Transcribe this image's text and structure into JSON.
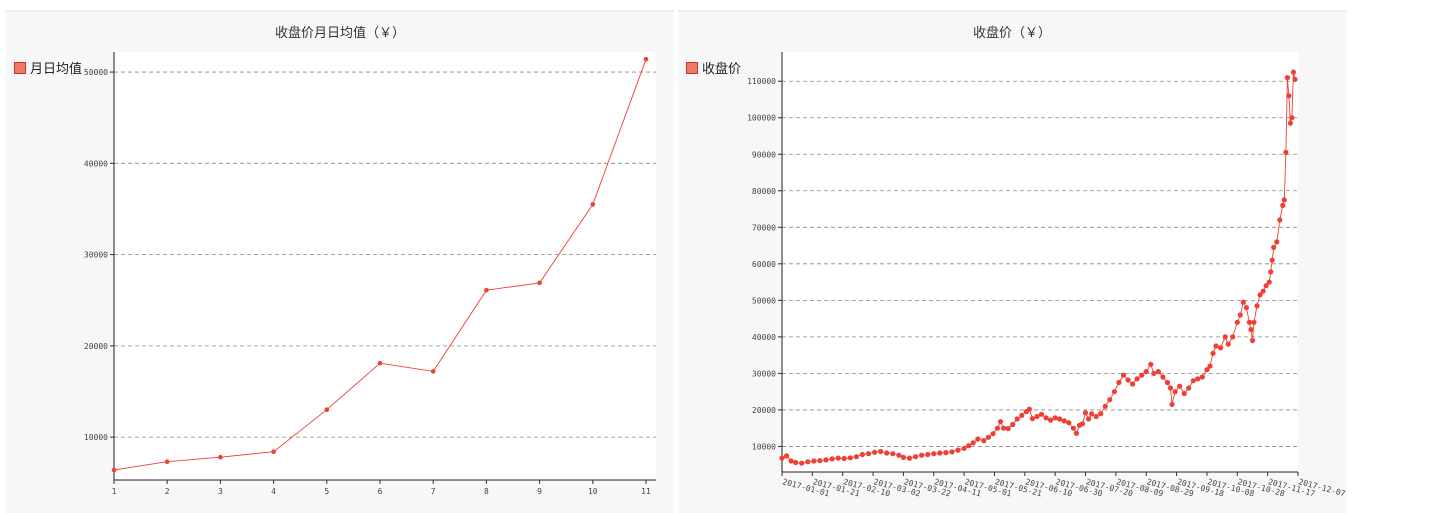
{
  "colors": {
    "series": "#ee4035",
    "legend_fill": "#f4776b",
    "panel_bg": "#f7f7f7",
    "plot_bg": "#ffffff"
  },
  "charts": [
    {
      "title": "收盘价月日均值（￥）",
      "legend": "月日均值",
      "chart_data": {
        "type": "line",
        "x": [
          1,
          2,
          3,
          4,
          5,
          6,
          7,
          8,
          9,
          10,
          11
        ],
        "series": [
          {
            "name": "月日均值",
            "values": [
              6400,
              7300,
              7800,
              8400,
              13000,
              18100,
              17200,
              26100,
              26900,
              35500,
              51400
            ]
          }
        ],
        "title": "收盘价月日均值（￥）",
        "xlabel": "",
        "ylabel": "",
        "ylim": [
          5300,
          52200
        ],
        "yticks": [
          10000,
          20000,
          30000,
          40000,
          50000
        ],
        "ytick_labels": [
          "10000",
          "20000",
          "30000",
          "40000",
          "50000"
        ],
        "xtick_labels": [
          "1",
          "2",
          "3",
          "4",
          "5",
          "6",
          "7",
          "8",
          "9",
          "10",
          "11"
        ],
        "grid": true,
        "legend_position": "top-left"
      }
    },
    {
      "title": "收盘价（￥）",
      "legend": "收盘价",
      "chart_data": {
        "type": "line",
        "x_type": "date",
        "x_start": "2017-01-01",
        "x": [
          "2017-01-01",
          "2017-01-21",
          "2017-02-10",
          "2017-03-02",
          "2017-03-22",
          "2017-04-11",
          "2017-05-01",
          "2017-05-21",
          "2017-06-10",
          "2017-06-30",
          "2017-07-20",
          "2017-08-09",
          "2017-08-29",
          "2017-09-18",
          "2017-10-08",
          "2017-10-28",
          "2017-11-17",
          "2017-12-07"
        ],
        "series": [
          {
            "name": "收盘价",
            "points": [
              [
                "2017-01-01",
                6800
              ],
              [
                "2017-01-04",
                7400
              ],
              [
                "2017-01-07",
                6000
              ],
              [
                "2017-01-10",
                5600
              ],
              [
                "2017-01-14",
                5400
              ],
              [
                "2017-01-18",
                5800
              ],
              [
                "2017-01-22",
                6000
              ],
              [
                "2017-01-26",
                6100
              ],
              [
                "2017-01-30",
                6300
              ],
              [
                "2017-02-03",
                6600
              ],
              [
                "2017-02-07",
                6800
              ],
              [
                "2017-02-11",
                6700
              ],
              [
                "2017-02-15",
                6900
              ],
              [
                "2017-02-19",
                7200
              ],
              [
                "2017-02-23",
                7800
              ],
              [
                "2017-02-27",
                8000
              ],
              [
                "2017-03-03",
                8400
              ],
              [
                "2017-03-07",
                8600
              ],
              [
                "2017-03-11",
                8200
              ],
              [
                "2017-03-15",
                8000
              ],
              [
                "2017-03-19",
                7600
              ],
              [
                "2017-03-22",
                7000
              ],
              [
                "2017-03-26",
                6800
              ],
              [
                "2017-03-30",
                7200
              ],
              [
                "2017-04-03",
                7600
              ],
              [
                "2017-04-07",
                7800
              ],
              [
                "2017-04-11",
                8000
              ],
              [
                "2017-04-15",
                8200
              ],
              [
                "2017-04-19",
                8300
              ],
              [
                "2017-04-23",
                8500
              ],
              [
                "2017-04-27",
                9000
              ],
              [
                "2017-05-01",
                9500
              ],
              [
                "2017-05-04",
                10200
              ],
              [
                "2017-05-07",
                11000
              ],
              [
                "2017-05-10",
                12000
              ],
              [
                "2017-05-14",
                11600
              ],
              [
                "2017-05-17",
                12500
              ],
              [
                "2017-05-20",
                13500
              ],
              [
                "2017-05-23",
                15000
              ],
              [
                "2017-05-25",
                16800
              ],
              [
                "2017-05-27",
                15000
              ],
              [
                "2017-05-30",
                14900
              ],
              [
                "2017-06-02",
                16000
              ],
              [
                "2017-06-05",
                17500
              ],
              [
                "2017-06-08",
                18500
              ],
              [
                "2017-06-11",
                19500
              ],
              [
                "2017-06-13",
                20200
              ],
              [
                "2017-06-15",
                17600
              ],
              [
                "2017-06-18",
                18200
              ],
              [
                "2017-06-21",
                18800
              ],
              [
                "2017-06-24",
                17800
              ],
              [
                "2017-06-27",
                17200
              ],
              [
                "2017-06-30",
                17800
              ],
              [
                "2017-07-03",
                17500
              ],
              [
                "2017-07-06",
                17000
              ],
              [
                "2017-07-09",
                16500
              ],
              [
                "2017-07-12",
                15000
              ],
              [
                "2017-07-14",
                13600
              ],
              [
                "2017-07-16",
                15800
              ],
              [
                "2017-07-18",
                16200
              ],
              [
                "2017-07-20",
                19200
              ],
              [
                "2017-07-22",
                17500
              ],
              [
                "2017-07-24",
                18900
              ],
              [
                "2017-07-27",
                18200
              ],
              [
                "2017-07-30",
                19000
              ],
              [
                "2017-08-02",
                21000
              ],
              [
                "2017-08-05",
                22800
              ],
              [
                "2017-08-08",
                25000
              ],
              [
                "2017-08-11",
                27500
              ],
              [
                "2017-08-14",
                29500
              ],
              [
                "2017-08-17",
                28200
              ],
              [
                "2017-08-20",
                27100
              ],
              [
                "2017-08-23",
                28500
              ],
              [
                "2017-08-26",
                29500
              ],
              [
                "2017-08-29",
                30500
              ],
              [
                "2017-09-01",
                32500
              ],
              [
                "2017-09-03",
                30000
              ],
              [
                "2017-09-06",
                30500
              ],
              [
                "2017-09-09",
                29000
              ],
              [
                "2017-09-12",
                27500
              ],
              [
                "2017-09-14",
                26000
              ],
              [
                "2017-09-15",
                21500
              ],
              [
                "2017-09-17",
                25000
              ],
              [
                "2017-09-20",
                26500
              ],
              [
                "2017-09-23",
                24500
              ],
              [
                "2017-09-26",
                26000
              ],
              [
                "2017-09-29",
                28000
              ],
              [
                "2017-10-02",
                28500
              ],
              [
                "2017-10-05",
                29000
              ],
              [
                "2017-10-08",
                31000
              ],
              [
                "2017-10-10",
                32000
              ],
              [
                "2017-10-12",
                35500
              ],
              [
                "2017-10-14",
                37500
              ],
              [
                "2017-10-17",
                37000
              ],
              [
                "2017-10-20",
                40000
              ],
              [
                "2017-10-22",
                38000
              ],
              [
                "2017-10-25",
                40000
              ],
              [
                "2017-10-28",
                44000
              ],
              [
                "2017-10-30",
                46000
              ],
              [
                "2017-11-01",
                49500
              ],
              [
                "2017-11-03",
                48000
              ],
              [
                "2017-11-05",
                44000
              ],
              [
                "2017-11-06",
                42000
              ],
              [
                "2017-11-07",
                39000
              ],
              [
                "2017-11-08",
                44000
              ],
              [
                "2017-11-10",
                48500
              ],
              [
                "2017-11-12",
                51500
              ],
              [
                "2017-11-14",
                52500
              ],
              [
                "2017-11-16",
                54000
              ],
              [
                "2017-11-18",
                55000
              ],
              [
                "2017-11-19",
                57800
              ],
              [
                "2017-11-20",
                61000
              ],
              [
                "2017-11-21",
                64500
              ],
              [
                "2017-11-23",
                66000
              ],
              [
                "2017-11-25",
                72000
              ],
              [
                "2017-11-27",
                76000
              ],
              [
                "2017-11-28",
                77500
              ],
              [
                "2017-11-29",
                90500
              ],
              [
                "2017-11-30",
                111000
              ],
              [
                "2017-12-01",
                106000
              ],
              [
                "2017-12-02",
                98500
              ],
              [
                "2017-12-03",
                100000
              ],
              [
                "2017-12-04",
                112500
              ],
              [
                "2017-12-05",
                110500
              ]
            ]
          }
        ],
        "title": "收盘价（￥）",
        "xlabel": "",
        "ylabel": "",
        "ylim": [
          3000,
          118000
        ],
        "yticks": [
          10000,
          20000,
          30000,
          40000,
          50000,
          60000,
          70000,
          80000,
          90000,
          100000,
          110000
        ],
        "ytick_labels": [
          "10000",
          "20000",
          "30000",
          "40000",
          "50000",
          "60000",
          "70000",
          "80000",
          "90000",
          "100000",
          "110000"
        ],
        "xtick_labels": [
          "2017-01-01",
          "2017-01-21",
          "2017-02-10",
          "2017-03-02",
          "2017-03-22",
          "2017-04-11",
          "2017-05-01",
          "2017-05-21",
          "2017-06-10",
          "2017-06-30",
          "2017-07-20",
          "2017-08-09",
          "2017-08-29",
          "2017-09-18",
          "2017-10-08",
          "2017-10-28",
          "2017-11-17",
          "2017-12-07"
        ],
        "grid": true,
        "legend_position": "top-left"
      }
    }
  ]
}
